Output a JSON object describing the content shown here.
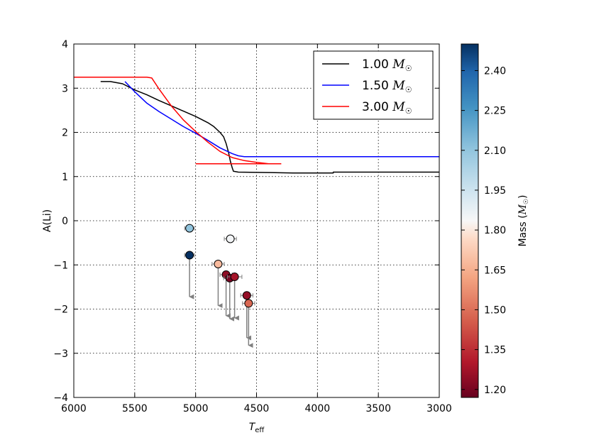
{
  "chart_data": {
    "type": "scatter",
    "xlabel": "T",
    "xlabel_sub": "eff",
    "ylabel": "A(Li)",
    "xlim": [
      6000,
      3000
    ],
    "ylim": [
      -4,
      4
    ],
    "xticks": [
      6000,
      5500,
      5000,
      4500,
      4000,
      3500,
      3000
    ],
    "yticks": [
      4,
      3,
      2,
      1,
      0,
      -1,
      -2,
      -3,
      -4
    ],
    "grid": true,
    "legend_position": "top-right",
    "series": [
      {
        "name": "1.00",
        "name_unit": "M",
        "name_unit_sub": "☉",
        "color": "#000000",
        "type": "line",
        "points": [
          [
            5780,
            3.15
          ],
          [
            5700,
            3.15
          ],
          [
            5600,
            3.1
          ],
          [
            5500,
            2.96
          ],
          [
            5400,
            2.85
          ],
          [
            5300,
            2.72
          ],
          [
            5200,
            2.6
          ],
          [
            5100,
            2.48
          ],
          [
            5000,
            2.36
          ],
          [
            4900,
            2.22
          ],
          [
            4850,
            2.13
          ],
          [
            4800,
            2.0
          ],
          [
            4770,
            1.9
          ],
          [
            4750,
            1.75
          ],
          [
            4730,
            1.55
          ],
          [
            4715,
            1.35
          ],
          [
            4700,
            1.2
          ],
          [
            4690,
            1.12
          ],
          [
            4650,
            1.1
          ],
          [
            4400,
            1.09
          ],
          [
            4200,
            1.08
          ],
          [
            4000,
            1.08
          ],
          [
            3870,
            1.08
          ],
          [
            3870,
            1.1
          ],
          [
            3000,
            1.1
          ]
        ]
      },
      {
        "name": "1.50",
        "name_unit": "M",
        "name_unit_sub": "☉",
        "color": "#0000ff",
        "type": "line",
        "points": [
          [
            5580,
            3.15
          ],
          [
            5500,
            2.92
          ],
          [
            5400,
            2.66
          ],
          [
            5300,
            2.47
          ],
          [
            5200,
            2.3
          ],
          [
            5100,
            2.13
          ],
          [
            5000,
            1.98
          ],
          [
            4900,
            1.82
          ],
          [
            4800,
            1.65
          ],
          [
            4700,
            1.52
          ],
          [
            4650,
            1.47
          ],
          [
            4600,
            1.45
          ],
          [
            4400,
            1.45
          ],
          [
            3000,
            1.45
          ]
        ]
      },
      {
        "name": "3.00",
        "name_unit": "M",
        "name_unit_sub": "☉",
        "color": "#ff0000",
        "type": "line",
        "points": [
          [
            6000,
            3.25
          ],
          [
            5400,
            3.25
          ],
          [
            5360,
            3.23
          ],
          [
            5300,
            2.98
          ],
          [
            5200,
            2.6
          ],
          [
            5100,
            2.28
          ],
          [
            5000,
            2.02
          ],
          [
            4900,
            1.78
          ],
          [
            4800,
            1.57
          ],
          [
            4700,
            1.43
          ],
          [
            4600,
            1.36
          ],
          [
            4500,
            1.32
          ],
          [
            4400,
            1.29
          ],
          [
            4300,
            1.29
          ],
          [
            5000,
            1.29
          ]
        ]
      }
    ],
    "colorbar": {
      "label": "Mass (",
      "label_unit": "M",
      "label_unit_sub": "☉",
      "label_close": ")",
      "range": [
        1.17,
        2.5
      ],
      "ticks": [
        "2.40",
        "2.25",
        "2.10",
        "1.95",
        "1.80",
        "1.65",
        "1.50",
        "1.35",
        "1.20"
      ],
      "tick_values": [
        2.4,
        2.25,
        2.1,
        1.95,
        1.8,
        1.65,
        1.5,
        1.35,
        1.2
      ],
      "colormap": "RdBu"
    },
    "stars": [
      {
        "teff": 5050,
        "ali": -0.17,
        "mass": 2.1,
        "xerr": 40,
        "upper_limit": false
      },
      {
        "teff": 5050,
        "ali": -0.78,
        "mass": 2.5,
        "xerr": 40,
        "upper_limit": true,
        "arrow_to": -1.85
      },
      {
        "teff": 4715,
        "ali": -0.41,
        "mass": 1.85,
        "xerr": 50,
        "upper_limit": false
      },
      {
        "teff": 4815,
        "ali": -0.98,
        "mass": 1.68,
        "xerr": 50,
        "upper_limit": true,
        "arrow_to": -2.05
      },
      {
        "teff": 4750,
        "ali": -1.22,
        "mass": 1.24,
        "xerr": 50,
        "upper_limit": true,
        "arrow_to": -2.28
      },
      {
        "teff": 4720,
        "ali": -1.3,
        "mass": 1.2,
        "xerr": 50,
        "upper_limit": true,
        "arrow_to": -2.35
      },
      {
        "teff": 4680,
        "ali": -1.27,
        "mass": 1.28,
        "xerr": 60,
        "upper_limit": true,
        "arrow_to": -2.33
      },
      {
        "teff": 4580,
        "ali": -1.69,
        "mass": 1.25,
        "xerr": 50,
        "upper_limit": true,
        "arrow_to": -2.78
      },
      {
        "teff": 4565,
        "ali": -1.87,
        "mass": 1.48,
        "xerr": 50,
        "upper_limit": true,
        "arrow_to": -2.95
      }
    ]
  }
}
